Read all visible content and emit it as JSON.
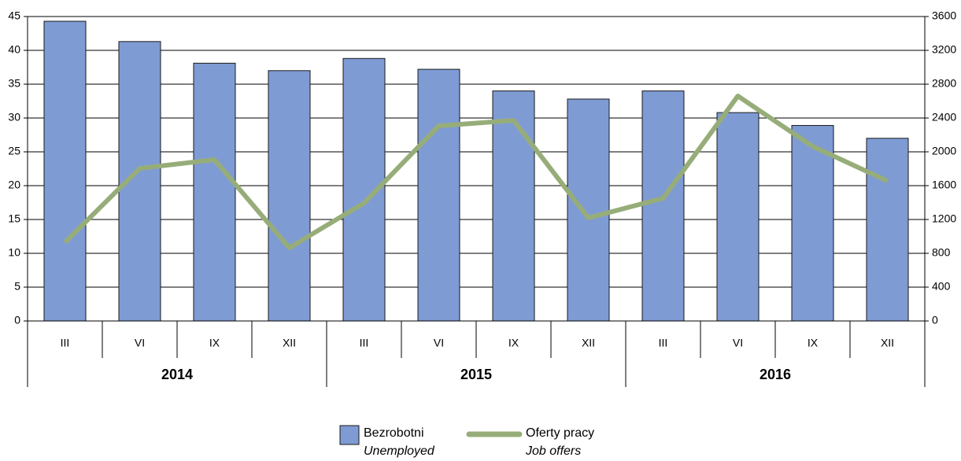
{
  "chart_data": {
    "type": "bar",
    "categories": [
      "III",
      "VI",
      "IX",
      "XII",
      "III",
      "VI",
      "IX",
      "XII",
      "III",
      "VI",
      "IX",
      "XII"
    ],
    "category_groups": [
      "2014",
      "2015",
      "2016"
    ],
    "series": [
      {
        "name": "Bezrobotni",
        "name_en": "Unemployed",
        "type": "bar",
        "color": "#7f9bd4",
        "values": [
          44.3,
          41.3,
          38.1,
          37.0,
          38.8,
          37.2,
          34.0,
          32.8,
          34.0,
          30.8,
          28.9,
          27.0
        ]
      },
      {
        "name": "Oferty pracy",
        "name_en": "Job offers",
        "type": "line",
        "axis": "y2",
        "color": "#97ad79",
        "values": [
          930,
          1805,
          1907,
          865,
          1395,
          2307,
          2372,
          1219,
          1451,
          2660,
          2065,
          1656
        ]
      }
    ],
    "ylim": [
      0,
      45
    ],
    "yticks": [
      0,
      5,
      10,
      15,
      20,
      25,
      30,
      35,
      40,
      45
    ],
    "y2lim": [
      0,
      3600
    ],
    "y2ticks": [
      0,
      400,
      800,
      1200,
      1600,
      2000,
      2400,
      2800,
      3200,
      3600
    ],
    "grid": true,
    "legend": "bottom"
  }
}
